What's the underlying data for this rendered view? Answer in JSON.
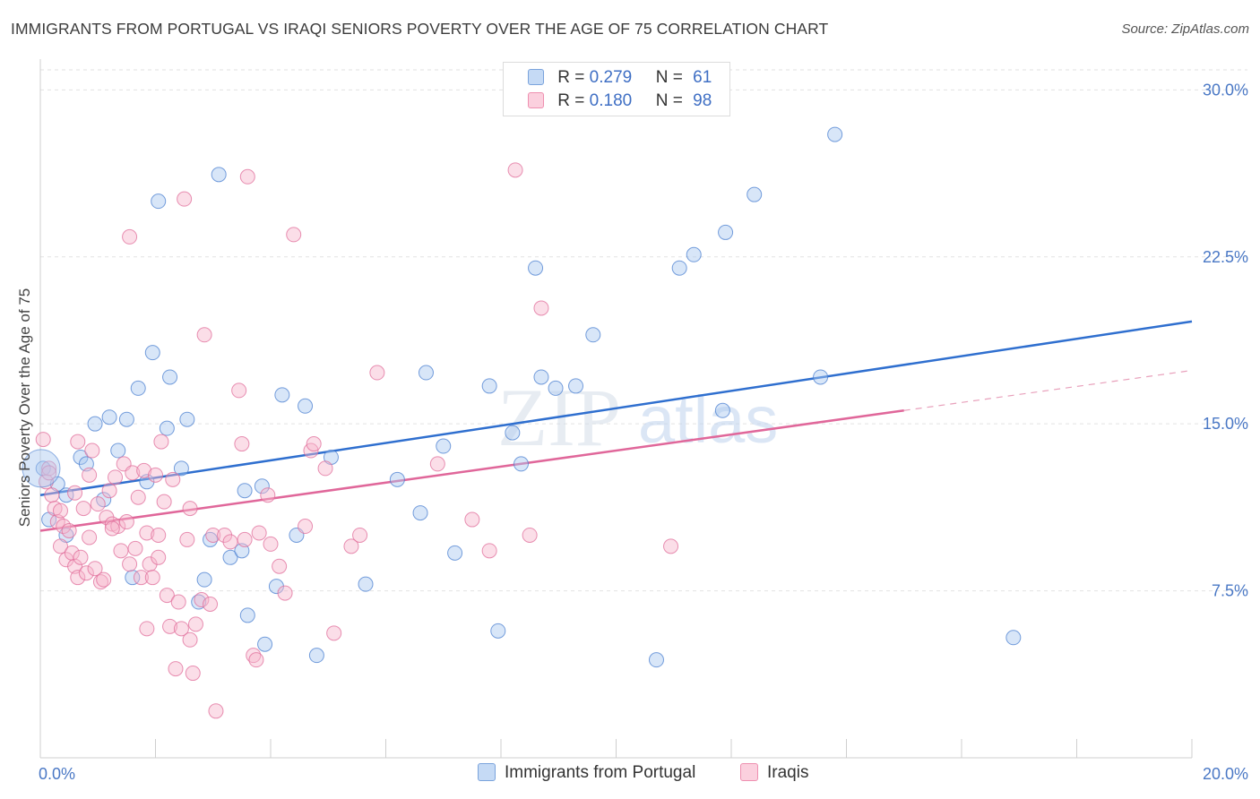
{
  "header": {
    "title": "IMMIGRANTS FROM PORTUGAL VS IRAQI SENIORS POVERTY OVER THE AGE OF 75 CORRELATION CHART",
    "source": "Source: ZipAtlas.com"
  },
  "watermark": {
    "zip": "ZIP",
    "atlas": "atlas"
  },
  "legend": {
    "rows": [
      {
        "r_label": "R = ",
        "r_value": "0.279",
        "n_label": "N = ",
        "n_value": "61",
        "color": "#a9c7ef"
      },
      {
        "r_label": "R = ",
        "r_value": "0.180",
        "n_label": "N = ",
        "n_value": "98",
        "color": "#f7b6cb"
      }
    ]
  },
  "bottom_legend": {
    "items": [
      {
        "label": "Immigrants from Portugal",
        "color": "#a9c7ef"
      },
      {
        "label": "Iraqis",
        "color": "#f7b6cb"
      }
    ]
  },
  "chart_data": {
    "type": "scatter",
    "title": "IMMIGRANTS FROM PORTUGAL VS IRAQI SENIORS POVERTY OVER THE AGE OF 75 CORRELATION CHART",
    "xlabel": "",
    "ylabel": "Seniors Poverty Over the Age of 75",
    "xlim": [
      0,
      20
    ],
    "ylim": [
      0,
      30.9
    ],
    "x_tick_labels": [
      "0.0%",
      "20.0%"
    ],
    "y_ticks": [
      7.5,
      15.0,
      22.5,
      30.0
    ],
    "y_tick_labels": [
      "7.5%",
      "15.0%",
      "22.5%",
      "30.0%"
    ],
    "grid": true,
    "legend_position": "top-center",
    "series": [
      {
        "name": "Immigrants from Portugal",
        "color": "#4a7fd0",
        "fill": "#a9c7ef",
        "trend": {
          "x": [
            0,
            20
          ],
          "y": [
            11.8,
            19.6
          ],
          "dashed_from": null
        },
        "points": [
          [
            0.05,
            13.0
          ],
          [
            0.15,
            10.7
          ],
          [
            0.3,
            12.3
          ],
          [
            0.45,
            11.8
          ],
          [
            0.45,
            10.0
          ],
          [
            0.7,
            13.5
          ],
          [
            0.8,
            13.2
          ],
          [
            0.95,
            15.0
          ],
          [
            1.1,
            11.6
          ],
          [
            1.2,
            15.3
          ],
          [
            1.35,
            13.8
          ],
          [
            1.5,
            15.2
          ],
          [
            1.6,
            8.1
          ],
          [
            1.7,
            16.6
          ],
          [
            1.85,
            12.4
          ],
          [
            1.95,
            18.2
          ],
          [
            2.05,
            25.0
          ],
          [
            2.2,
            14.8
          ],
          [
            2.25,
            17.1
          ],
          [
            2.45,
            13.0
          ],
          [
            2.55,
            15.2
          ],
          [
            2.75,
            7.0
          ],
          [
            2.85,
            8.0
          ],
          [
            2.95,
            9.8
          ],
          [
            3.1,
            26.2
          ],
          [
            3.3,
            9.0
          ],
          [
            3.5,
            9.3
          ],
          [
            3.55,
            12.0
          ],
          [
            3.6,
            6.4
          ],
          [
            3.85,
            12.2
          ],
          [
            3.9,
            5.1
          ],
          [
            4.1,
            7.7
          ],
          [
            4.2,
            16.3
          ],
          [
            4.45,
            10.0
          ],
          [
            4.6,
            15.8
          ],
          [
            4.8,
            4.6
          ],
          [
            5.05,
            13.5
          ],
          [
            5.65,
            7.8
          ],
          [
            6.2,
            12.5
          ],
          [
            6.6,
            11.0
          ],
          [
            6.7,
            17.3
          ],
          [
            7.0,
            14.0
          ],
          [
            7.2,
            9.2
          ],
          [
            7.8,
            16.7
          ],
          [
            7.95,
            5.7
          ],
          [
            8.2,
            14.6
          ],
          [
            8.35,
            13.2
          ],
          [
            8.6,
            22.0
          ],
          [
            8.7,
            17.1
          ],
          [
            8.95,
            16.6
          ],
          [
            9.3,
            16.7
          ],
          [
            9.6,
            19.0
          ],
          [
            10.7,
            4.4
          ],
          [
            11.1,
            22.0
          ],
          [
            11.35,
            22.6
          ],
          [
            11.85,
            15.6
          ],
          [
            11.9,
            23.6
          ],
          [
            12.4,
            25.3
          ],
          [
            13.55,
            17.1
          ],
          [
            13.8,
            28.0
          ],
          [
            16.9,
            5.4
          ]
        ]
      },
      {
        "name": "Iraqis",
        "color": "#e06c9a",
        "fill": "#f7b6cb",
        "trend": {
          "x": [
            0,
            15.0
          ],
          "y": [
            10.2,
            15.6
          ],
          "dashed_to": [
            20,
            17.4
          ]
        },
        "points": [
          [
            0.05,
            14.3
          ],
          [
            0.1,
            12.4
          ],
          [
            0.15,
            13.0
          ],
          [
            0.2,
            11.8
          ],
          [
            0.25,
            11.2
          ],
          [
            0.3,
            10.6
          ],
          [
            0.35,
            9.5
          ],
          [
            0.4,
            10.4
          ],
          [
            0.45,
            8.9
          ],
          [
            0.5,
            10.2
          ],
          [
            0.55,
            9.2
          ],
          [
            0.6,
            8.6
          ],
          [
            0.6,
            11.9
          ],
          [
            0.65,
            8.1
          ],
          [
            0.65,
            14.2
          ],
          [
            0.7,
            9.0
          ],
          [
            0.75,
            11.2
          ],
          [
            0.8,
            8.3
          ],
          [
            0.85,
            12.7
          ],
          [
            0.85,
            9.9
          ],
          [
            0.9,
            13.8
          ],
          [
            0.95,
            8.5
          ],
          [
            1.0,
            11.4
          ],
          [
            1.05,
            7.9
          ],
          [
            1.1,
            8.0
          ],
          [
            1.15,
            10.8
          ],
          [
            1.2,
            12.0
          ],
          [
            1.25,
            10.5
          ],
          [
            1.3,
            12.6
          ],
          [
            1.35,
            10.4
          ],
          [
            1.4,
            9.3
          ],
          [
            1.45,
            13.2
          ],
          [
            1.5,
            10.6
          ],
          [
            1.55,
            8.7
          ],
          [
            1.55,
            23.4
          ],
          [
            1.6,
            12.8
          ],
          [
            1.65,
            9.4
          ],
          [
            1.7,
            11.7
          ],
          [
            1.75,
            8.1
          ],
          [
            1.8,
            12.9
          ],
          [
            1.85,
            10.1
          ],
          [
            1.85,
            5.8
          ],
          [
            1.9,
            8.7
          ],
          [
            1.95,
            8.1
          ],
          [
            2.0,
            12.7
          ],
          [
            2.05,
            10.0
          ],
          [
            2.05,
            9.0
          ],
          [
            2.1,
            14.2
          ],
          [
            2.15,
            11.5
          ],
          [
            2.2,
            7.3
          ],
          [
            2.25,
            5.9
          ],
          [
            2.3,
            12.5
          ],
          [
            2.35,
            4.0
          ],
          [
            2.4,
            7.0
          ],
          [
            2.45,
            5.8
          ],
          [
            2.5,
            25.1
          ],
          [
            2.55,
            9.8
          ],
          [
            2.6,
            11.2
          ],
          [
            2.6,
            5.3
          ],
          [
            2.65,
            3.8
          ],
          [
            2.7,
            6.0
          ],
          [
            2.8,
            7.1
          ],
          [
            2.85,
            19.0
          ],
          [
            3.0,
            10.0
          ],
          [
            3.05,
            2.1
          ],
          [
            3.2,
            10.0
          ],
          [
            3.3,
            9.7
          ],
          [
            3.45,
            16.5
          ],
          [
            3.5,
            14.1
          ],
          [
            3.55,
            9.8
          ],
          [
            3.6,
            26.1
          ],
          [
            3.7,
            4.6
          ],
          [
            3.75,
            4.4
          ],
          [
            3.8,
            10.1
          ],
          [
            3.95,
            11.8
          ],
          [
            4.0,
            9.6
          ],
          [
            4.15,
            8.6
          ],
          [
            4.25,
            7.4
          ],
          [
            4.4,
            23.5
          ],
          [
            4.6,
            10.4
          ],
          [
            4.7,
            13.8
          ],
          [
            4.75,
            14.1
          ],
          [
            4.95,
            13.0
          ],
          [
            5.1,
            5.6
          ],
          [
            5.4,
            9.5
          ],
          [
            5.55,
            10.0
          ],
          [
            5.85,
            17.3
          ],
          [
            6.9,
            13.2
          ],
          [
            7.5,
            10.7
          ],
          [
            7.8,
            9.3
          ],
          [
            8.25,
            26.4
          ],
          [
            8.5,
            10.0
          ],
          [
            8.7,
            20.2
          ],
          [
            10.95,
            9.5
          ],
          [
            0.15,
            12.8
          ],
          [
            0.35,
            11.1
          ],
          [
            1.25,
            10.3
          ],
          [
            2.95,
            6.9
          ]
        ]
      }
    ]
  }
}
